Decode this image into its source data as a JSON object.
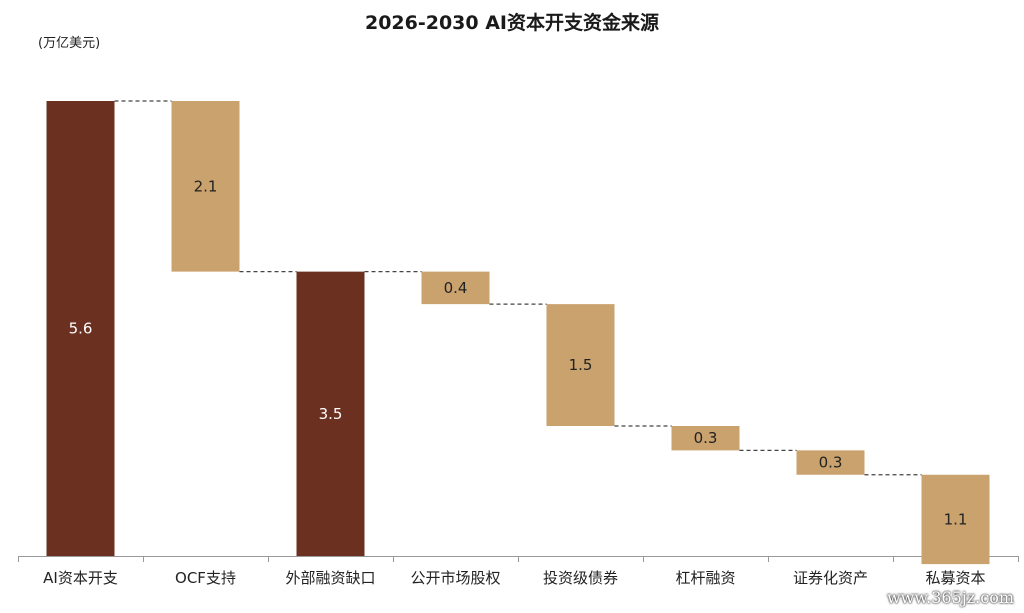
{
  "chart_data": {
    "type": "waterfall",
    "title": "2026-2030 AI资本开支资金来源",
    "unit": "(万亿美元)",
    "categories": [
      "AI资本开支",
      "OCF支持",
      "外部融资缺口",
      "公开市场股权",
      "投资级债券",
      "杠杆融资",
      "证券化资产",
      "私募资本"
    ],
    "values": [
      5.6,
      2.1,
      3.5,
      0.4,
      1.5,
      0.3,
      0.3,
      1.1
    ],
    "kinds": [
      "total",
      "step",
      "total",
      "step",
      "step",
      "step",
      "step",
      "step"
    ],
    "ylim": [
      0,
      5.6
    ],
    "grid": false,
    "legend": "none",
    "colors": {
      "total": "#6b3020",
      "step": "#c9a26e",
      "total_label": "#ffffff",
      "step_label": "#222222",
      "connector": "#444444",
      "axis": "#999999"
    }
  },
  "watermark": "www.365jz.com"
}
